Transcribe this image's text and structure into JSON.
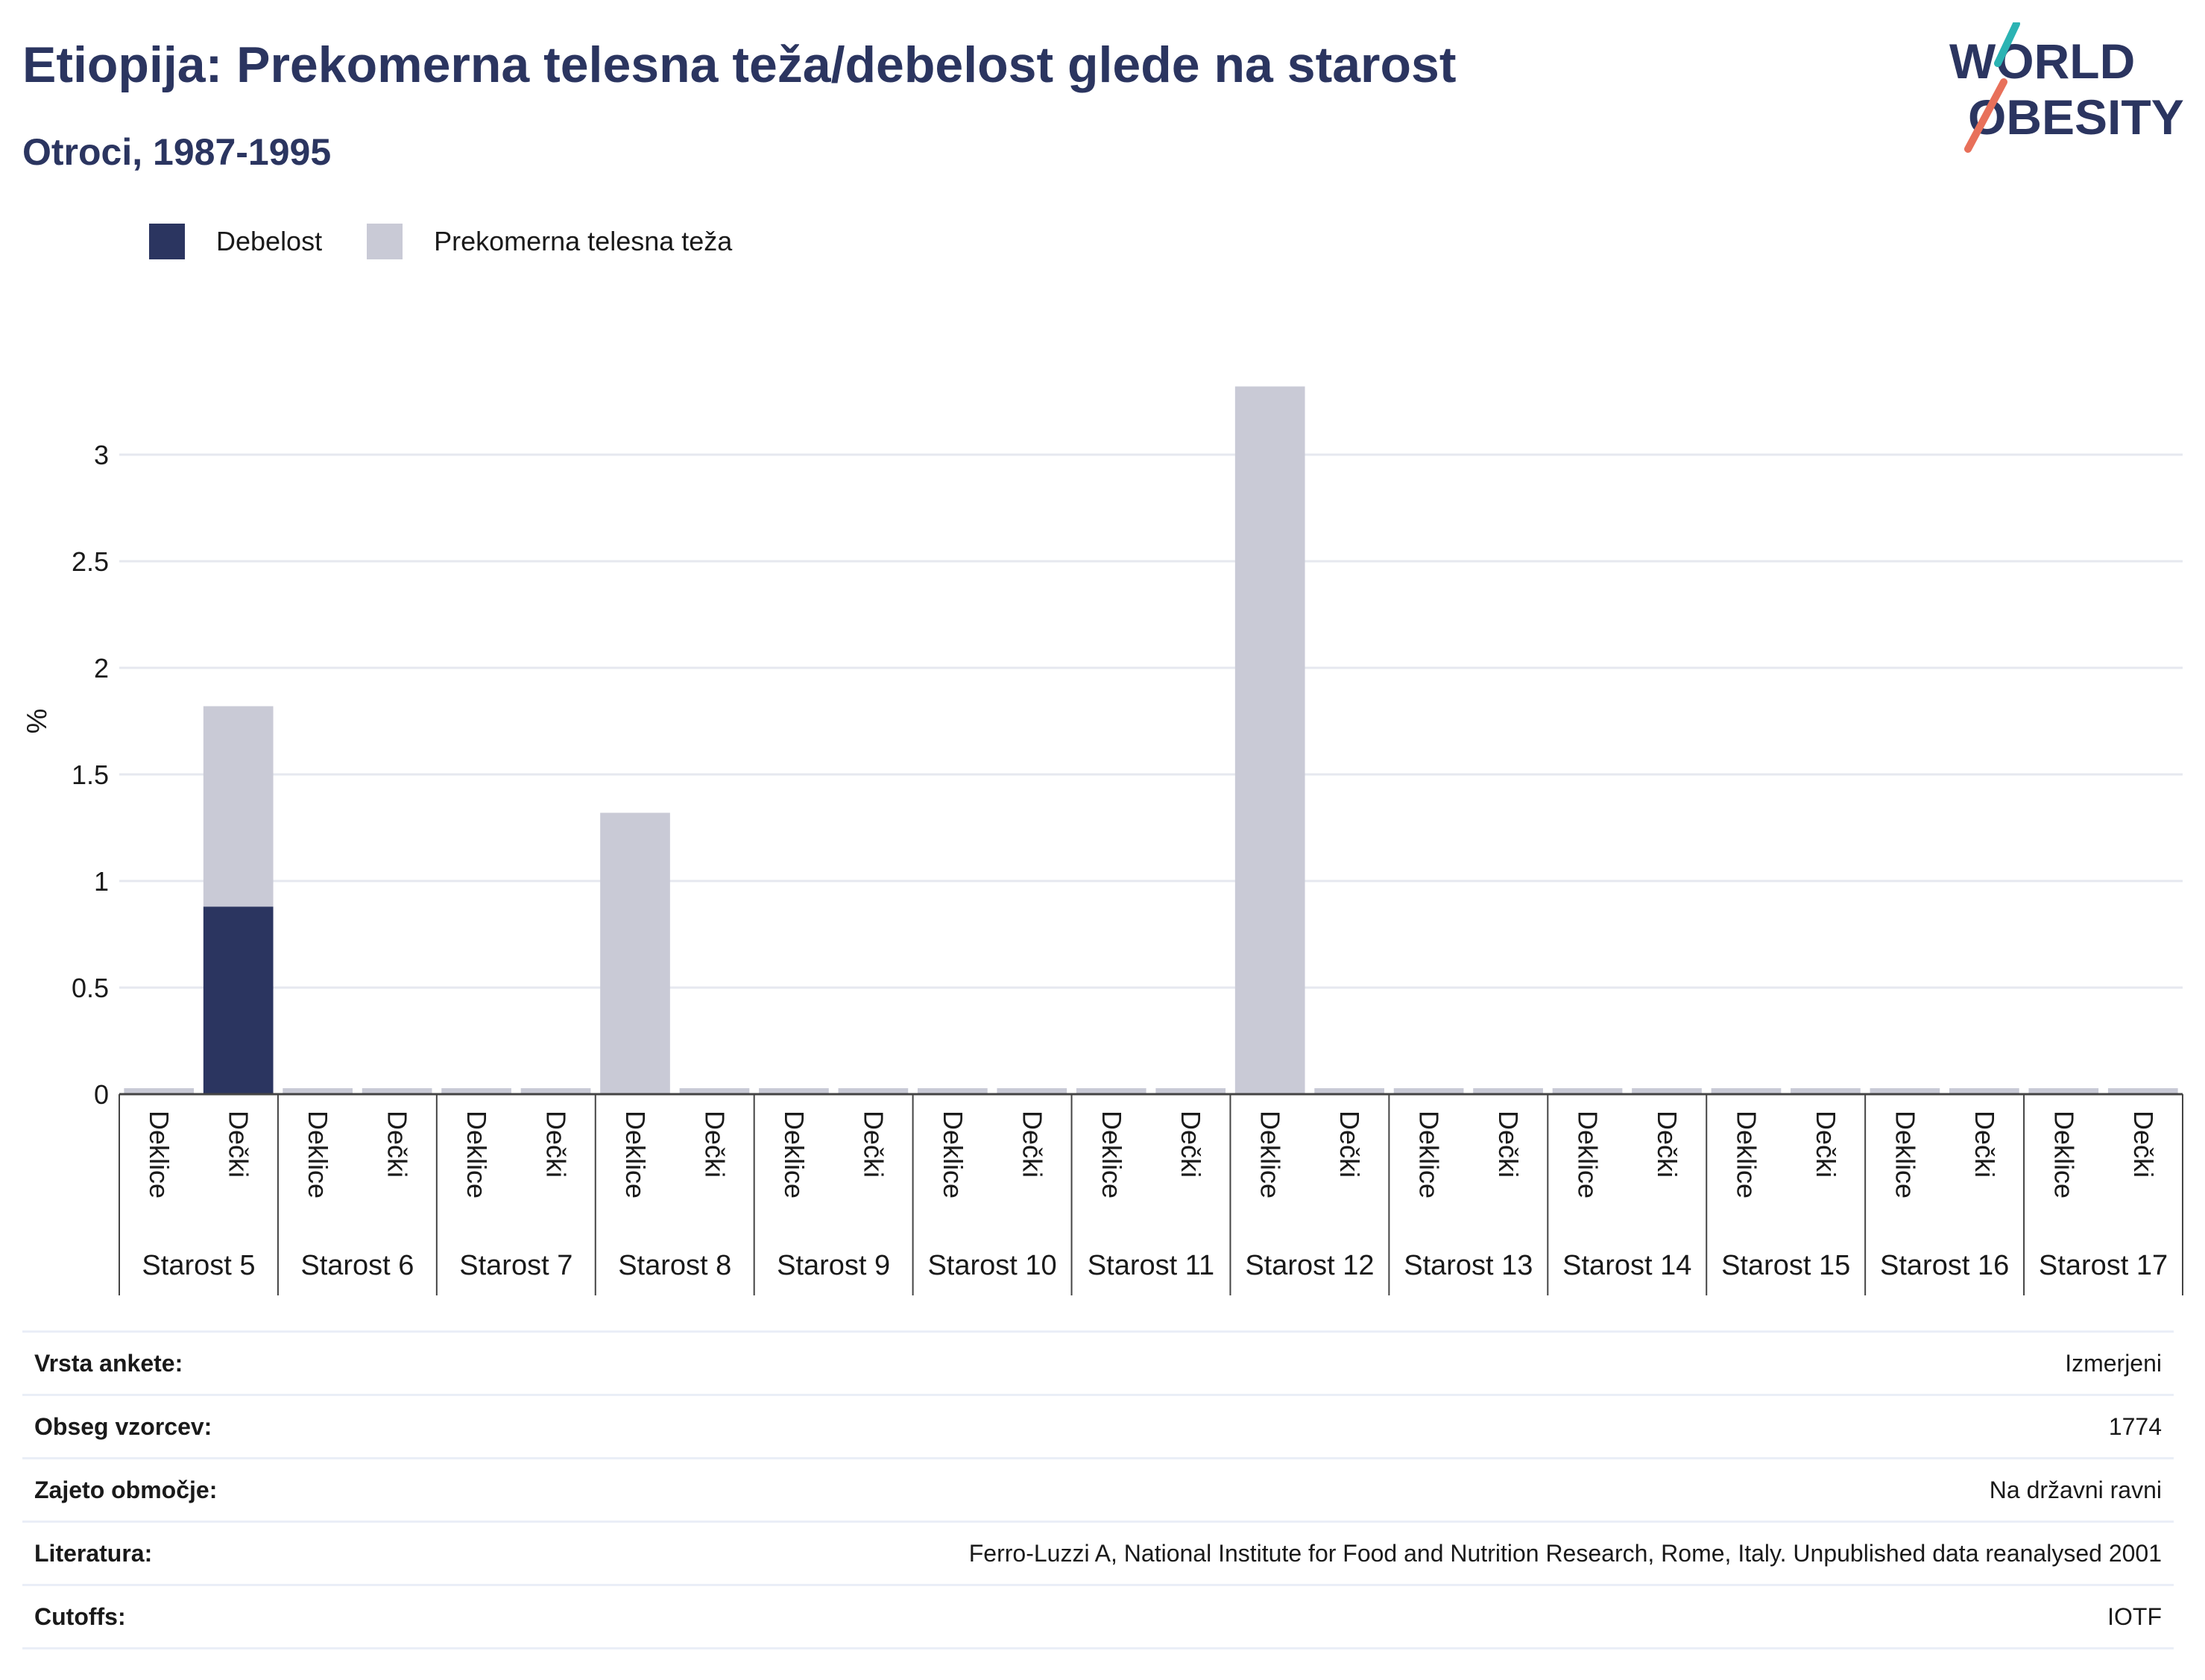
{
  "header": {
    "title": "Etiopija: Prekomerna telesna teža/debelost glede na starost",
    "subtitle": "Otroci, 1987-1995"
  },
  "logo": {
    "line1": "WORLD",
    "line2": "OBESITY"
  },
  "legend": {
    "items": [
      {
        "label": "Debelost",
        "color": "#2b3560"
      },
      {
        "label": "Prekomerna telesna teža",
        "color": "#c9cad6"
      }
    ]
  },
  "chart_data": {
    "type": "bar",
    "stacked": true,
    "ylabel": "%",
    "ylim": [
      0,
      3.6
    ],
    "yticks": [
      "0",
      "0.5",
      "1",
      "1.5",
      "2",
      "2.5",
      "3"
    ],
    "grid": true,
    "legend_position": "top-left",
    "groups": [
      "Starost 5",
      "Starost 6",
      "Starost 7",
      "Starost 8",
      "Starost 9",
      "Starost 10",
      "Starost 11",
      "Starost 12",
      "Starost 13",
      "Starost 14",
      "Starost 15",
      "Starost 16",
      "Starost 17"
    ],
    "subcategories": [
      "Deklice",
      "Dečki"
    ],
    "series": [
      {
        "name": "Debelost",
        "color": "#2b3560",
        "values": [
          0,
          0.88,
          0,
          0,
          0,
          0,
          0,
          0,
          0,
          0,
          0,
          0,
          0,
          0,
          0,
          0,
          0,
          0,
          0,
          0,
          0,
          0,
          0,
          0,
          0,
          0
        ]
      },
      {
        "name": "Prekomerna telesna teža",
        "color": "#c9cad6",
        "values": [
          0,
          0.94,
          0,
          0,
          0,
          0,
          1.32,
          0,
          0,
          0,
          0,
          0,
          0,
          0,
          3.32,
          0,
          0,
          0,
          0,
          0,
          0,
          0,
          0,
          0,
          0,
          0
        ]
      }
    ]
  },
  "meta": {
    "rows": [
      {
        "label": "Vrsta ankete:",
        "value": "Izmerjeni"
      },
      {
        "label": "Obseg vzorcev:",
        "value": "1774"
      },
      {
        "label": "Zajeto območje:",
        "value": "Na državni ravni"
      },
      {
        "label": "Literatura:",
        "value": "Ferro-Luzzi A, National Institute for Food and Nutrition Research, Rome, Italy. Unpublished data reanalysed 2001"
      },
      {
        "label": "Cutoffs:",
        "value": "IOTF"
      }
    ]
  }
}
